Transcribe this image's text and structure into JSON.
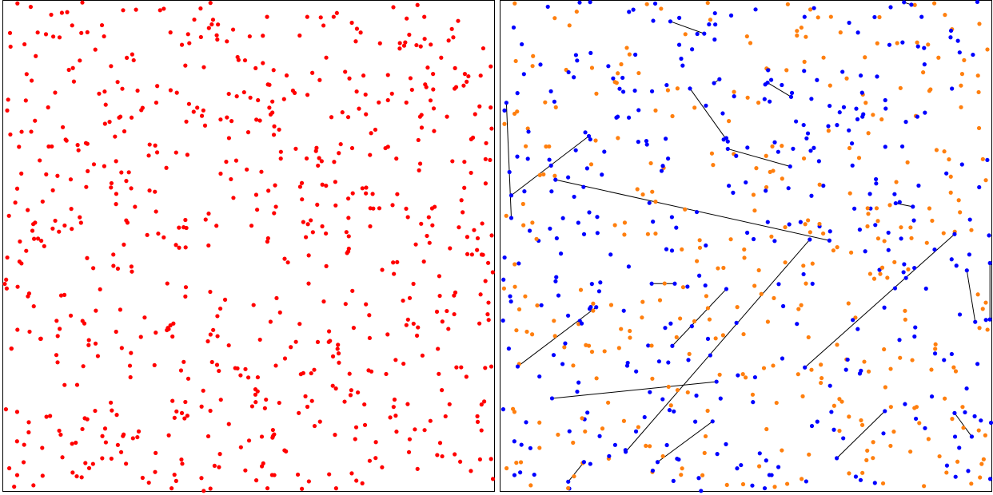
{
  "chart_data": [
    {
      "type": "scatter",
      "title": "",
      "xlabel": "",
      "ylabel": "",
      "xlim": [
        0,
        1
      ],
      "ylim": [
        0,
        1
      ],
      "axes_visible": false,
      "grid": false,
      "n_points": 700,
      "seed": 17,
      "series": [
        {
          "color": "#ff0000"
        }
      ]
    },
    {
      "type": "scatter",
      "title": "",
      "xlabel": "",
      "ylabel": "",
      "xlim": [
        0,
        1
      ],
      "ylim": [
        0,
        1
      ],
      "axes_visible": false,
      "grid": false,
      "n_points": 700,
      "seed": 17,
      "series": [
        {
          "color": "#0000ff"
        },
        {
          "color": "#ff7f0e"
        }
      ],
      "links_color": "#000000",
      "links": [
        [
          0.012,
          0.792,
          0.022,
          0.557
        ],
        [
          0.022,
          0.603,
          0.18,
          0.724
        ],
        [
          0.112,
          0.635,
          0.67,
          0.511
        ],
        [
          0.346,
          0.958,
          0.415,
          0.933
        ],
        [
          0.386,
          0.821,
          0.463,
          0.713
        ],
        [
          0.435,
          0.832,
          0.446,
          0.84
        ],
        [
          0.463,
          0.698,
          0.59,
          0.662
        ],
        [
          0.544,
          0.833,
          0.592,
          0.804
        ],
        [
          0.805,
          0.587,
          0.84,
          0.58
        ],
        [
          0.308,
          0.423,
          0.355,
          0.423
        ],
        [
          0.035,
          0.254,
          0.195,
          0.375
        ],
        [
          0.35,
          0.296,
          0.46,
          0.412
        ],
        [
          0.63,
          0.513,
          0.255,
          0.08
        ],
        [
          0.62,
          0.252,
          0.925,
          0.524
        ],
        [
          0.95,
          0.45,
          0.967,
          0.345
        ],
        [
          0.997,
          0.465,
          0.997,
          0.35
        ],
        [
          0.105,
          0.189,
          0.44,
          0.223
        ],
        [
          0.32,
          0.059,
          0.432,
          0.142
        ],
        [
          0.685,
          0.067,
          0.783,
          0.163
        ],
        [
          0.925,
          0.159,
          0.96,
          0.111
        ],
        [
          0.138,
          0.019,
          0.17,
          0.059
        ],
        [
          0.822,
          0.997,
          0.837,
          0.992
        ]
      ]
    }
  ]
}
